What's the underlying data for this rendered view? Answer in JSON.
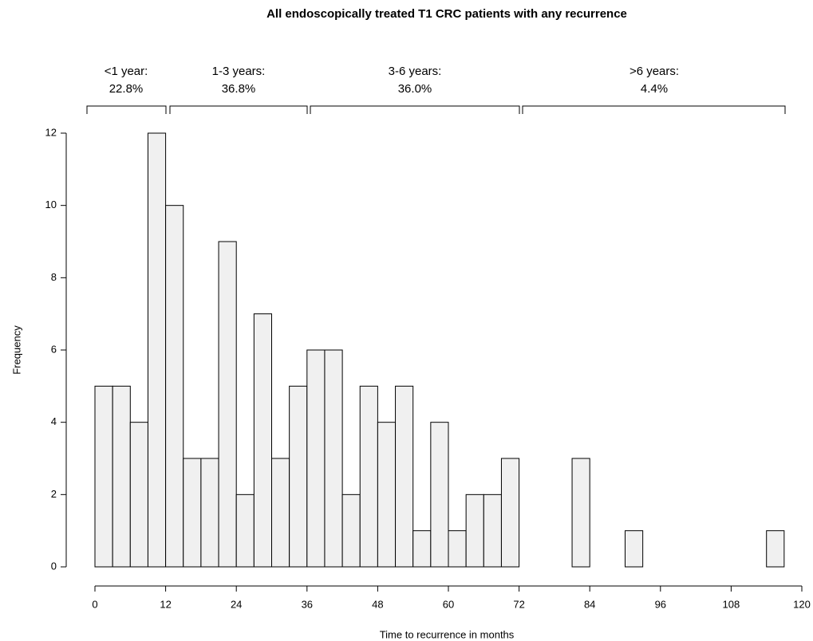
{
  "chart_data": {
    "type": "histogram",
    "title": "All endoscopically treated T1 CRC patients with any recurrence",
    "xlabel": "Time to recurrence in months",
    "ylabel": "Frequency",
    "bins": [
      0,
      3,
      6,
      9,
      12,
      15,
      18,
      21,
      24,
      27,
      30,
      33,
      36,
      39,
      42,
      45,
      48,
      51,
      54,
      57,
      60,
      63,
      66,
      69,
      72,
      75,
      78,
      81,
      84,
      87,
      90,
      93,
      96,
      99,
      102,
      105,
      108,
      111,
      114,
      117
    ],
    "counts": [
      5,
      5,
      4,
      12,
      10,
      3,
      3,
      9,
      2,
      7,
      3,
      5,
      6,
      6,
      2,
      5,
      4,
      5,
      1,
      4,
      1,
      2,
      2,
      3,
      0,
      0,
      0,
      3,
      0,
      0,
      1,
      0,
      0,
      0,
      0,
      0,
      0,
      0,
      1
    ],
    "color": "#f0f0f0",
    "xlim": [
      0,
      120
    ],
    "xticks": [
      0,
      12,
      24,
      36,
      48,
      60,
      72,
      84,
      96,
      108,
      120
    ],
    "ylim": [
      0,
      12
    ],
    "yticks": [
      0,
      2,
      4,
      6,
      8,
      10,
      12
    ],
    "annotations": [
      {
        "label": "<1 year:",
        "value": "22.8%"
      },
      {
        "label": "1-3 years:",
        "value": "36.8%"
      },
      {
        "label": "3-6 years:",
        "value": "36.0%"
      },
      {
        "label": ">6 years:",
        "value": "4.4%"
      }
    ]
  }
}
